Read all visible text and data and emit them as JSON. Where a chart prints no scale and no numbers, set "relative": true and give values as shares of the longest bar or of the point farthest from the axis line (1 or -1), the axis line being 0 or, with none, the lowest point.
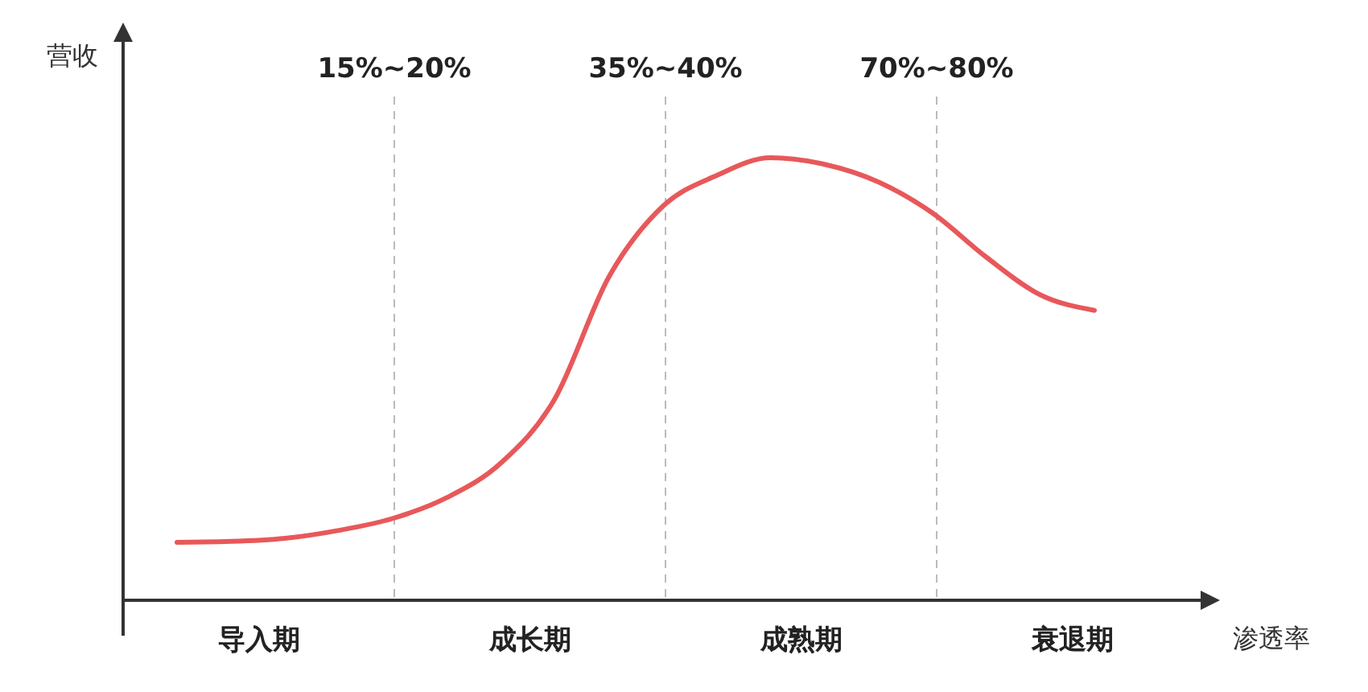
{
  "chart_data": {
    "type": "line",
    "relative": true,
    "xlabel": "渗透率",
    "ylabel": "营收",
    "categories": [
      null,
      null,
      null,
      null,
      null,
      null,
      null,
      null,
      null,
      null,
      null,
      null,
      null,
      null,
      null,
      null,
      null,
      null
    ],
    "line_style": "solid",
    "series": [
      {
        "color": "#e8585a",
        "values": [
          0.131,
          0.133,
          0.14,
          0.158,
          0.185,
          0.232,
          0.31,
          0.455,
          0.73,
          0.89,
          0.96,
          1,
          0.985,
          0.945,
          0.875,
          0.775,
          0.69,
          0.655
        ]
      }
    ],
    "annotations": [
      "15%~20%",
      "35%~40%",
      "70%~80%",
      "导入期",
      "成长期",
      "成熟期",
      "衰退期"
    ]
  }
}
